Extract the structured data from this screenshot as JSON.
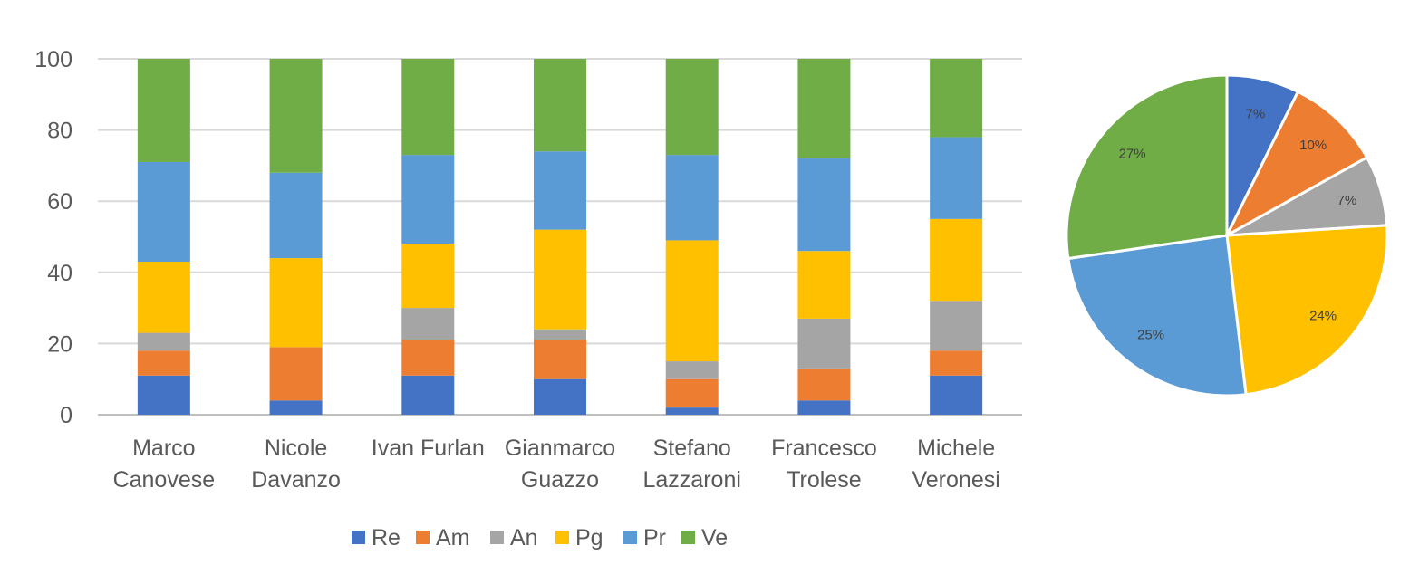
{
  "chart_data": [
    {
      "type": "bar",
      "stacked": true,
      "categories": [
        [
          "Marco",
          "Canovese"
        ],
        [
          "Nicole",
          "Davanzo"
        ],
        [
          "Ivan Furlan"
        ],
        [
          "Gianmarco",
          "Guazzo"
        ],
        [
          "Stefano",
          "Lazzaroni"
        ],
        [
          "Francesco",
          "Trolese"
        ],
        [
          "Michele",
          "Veronesi"
        ]
      ],
      "series": [
        {
          "name": "Re",
          "color": "#4472C4",
          "values": [
            11,
            4,
            11,
            10,
            2,
            4,
            11
          ]
        },
        {
          "name": "Am",
          "color": "#ED7D31",
          "values": [
            7,
            15,
            10,
            11,
            8,
            9,
            7
          ]
        },
        {
          "name": "An",
          "color": "#A5A5A5",
          "values": [
            5,
            0,
            9,
            3,
            5,
            14,
            14
          ]
        },
        {
          "name": "Pg",
          "color": "#FFC000",
          "values": [
            20,
            25,
            18,
            28,
            34,
            19,
            23
          ]
        },
        {
          "name": "Pr",
          "color": "#5B9BD5",
          "values": [
            28,
            24,
            25,
            22,
            24,
            26,
            23
          ]
        },
        {
          "name": "Ve",
          "color": "#70AD47",
          "values": [
            29,
            32,
            27,
            26,
            27,
            28,
            22
          ]
        }
      ],
      "ylim": [
        0,
        100
      ],
      "yticks": [
        "0",
        "20",
        "40",
        "60",
        "80",
        "100"
      ],
      "grid": true,
      "legend": "bottom"
    },
    {
      "type": "pie",
      "slices": [
        {
          "name": "Re",
          "label": "7%",
          "value": 7.3,
          "color": "#4472C4"
        },
        {
          "name": "Am",
          "label": "10%",
          "value": 9.6,
          "color": "#ED7D31"
        },
        {
          "name": "An",
          "label": "7%",
          "value": 7.1,
          "color": "#A5A5A5"
        },
        {
          "name": "Pg",
          "label": "24%",
          "value": 24.1,
          "color": "#FFC000"
        },
        {
          "name": "Pr",
          "label": "25%",
          "value": 24.6,
          "color": "#5B9BD5"
        },
        {
          "name": "Ve",
          "label": "27%",
          "value": 27.3,
          "color": "#70AD47"
        }
      ]
    }
  ]
}
